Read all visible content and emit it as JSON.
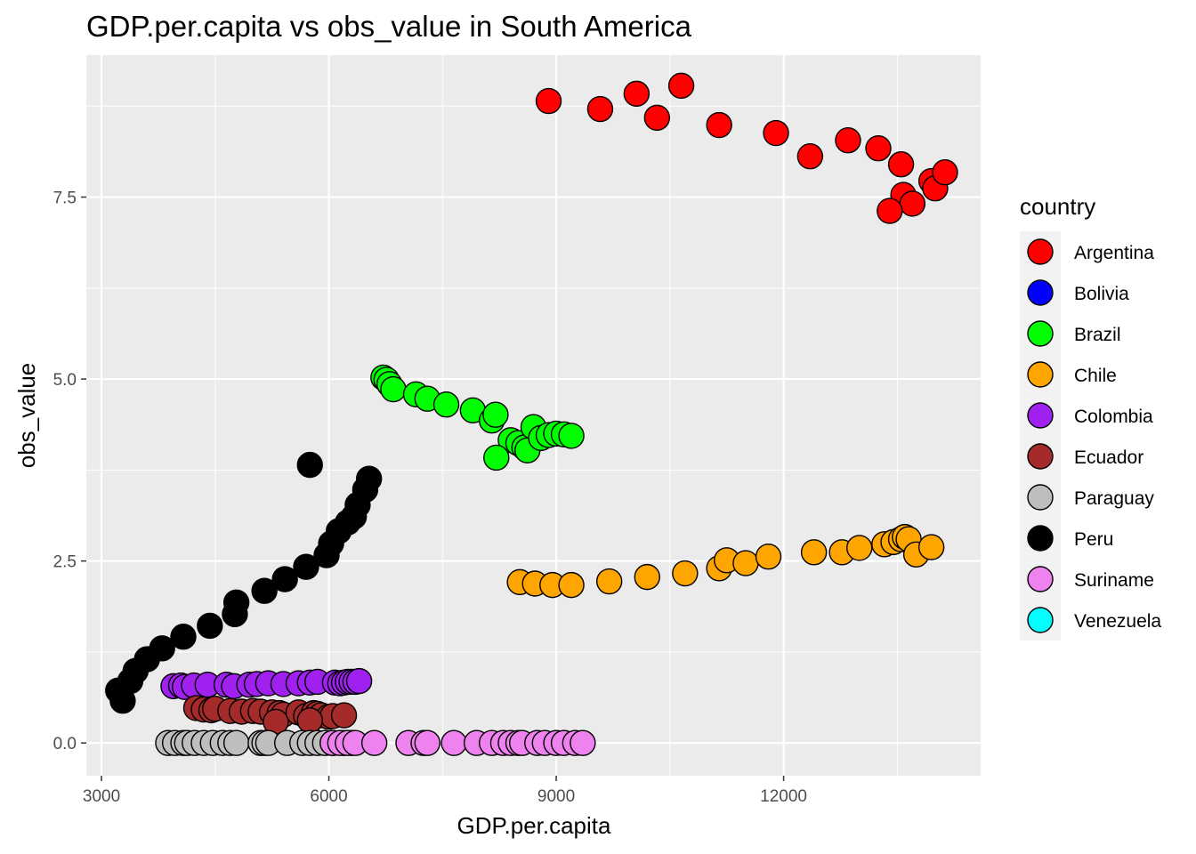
{
  "chart_data": {
    "type": "scatter",
    "title": "GDP.per.capita vs obs_value in South America",
    "xlabel": "GDP.per.capita",
    "ylabel": "obs_value",
    "xlim": [
      2800,
      14600
    ],
    "ylim": [
      -0.45,
      9.45
    ],
    "x_ticks": [
      3000,
      6000,
      9000,
      12000
    ],
    "x_tick_labels": [
      "3000",
      "6000",
      "9000",
      "12000"
    ],
    "y_ticks": [
      0,
      2.5,
      5,
      7.5
    ],
    "y_tick_labels": [
      "0.0",
      "2.5",
      "5.0",
      "7.5"
    ],
    "grid": true,
    "legend_title": "country",
    "legend_position": "right",
    "series": [
      {
        "name": "Argentina",
        "color": "#FF0000",
        "points": [
          [
            8900,
            8.82
          ],
          [
            9580,
            8.71
          ],
          [
            10060,
            8.92
          ],
          [
            10330,
            8.59
          ],
          [
            10650,
            9.03
          ],
          [
            11150,
            8.49
          ],
          [
            11900,
            8.38
          ],
          [
            12350,
            8.06
          ],
          [
            12850,
            8.28
          ],
          [
            13250,
            8.17
          ],
          [
            13550,
            7.95
          ],
          [
            13580,
            7.53
          ],
          [
            13700,
            7.41
          ],
          [
            13950,
            7.72
          ],
          [
            14000,
            7.62
          ],
          [
            14130,
            7.84
          ],
          [
            13400,
            7.31
          ]
        ]
      },
      {
        "name": "Bolivia",
        "color": "#0000FF",
        "points": []
      },
      {
        "name": "Brazil",
        "color": "#00FF00",
        "points": [
          [
            6720,
            5.02
          ],
          [
            6760,
            4.99
          ],
          [
            6800,
            4.93
          ],
          [
            6850,
            4.86
          ],
          [
            7150,
            4.79
          ],
          [
            7300,
            4.73
          ],
          [
            7550,
            4.65
          ],
          [
            7900,
            4.57
          ],
          [
            8150,
            4.43
          ],
          [
            8200,
            4.51
          ],
          [
            8400,
            4.16
          ],
          [
            8500,
            4.12
          ],
          [
            8580,
            4.06
          ],
          [
            8620,
            4.02
          ],
          [
            8700,
            4.34
          ],
          [
            8800,
            4.19
          ],
          [
            8900,
            4.23
          ],
          [
            9000,
            4.25
          ],
          [
            9100,
            4.24
          ],
          [
            9200,
            4.22
          ],
          [
            8210,
            3.92
          ]
        ]
      },
      {
        "name": "Chile",
        "color": "#FFA500",
        "points": [
          [
            8520,
            2.21
          ],
          [
            8720,
            2.19
          ],
          [
            8950,
            2.17
          ],
          [
            9200,
            2.17
          ],
          [
            9700,
            2.22
          ],
          [
            10200,
            2.28
          ],
          [
            10700,
            2.33
          ],
          [
            11150,
            2.4
          ],
          [
            11250,
            2.51
          ],
          [
            11500,
            2.47
          ],
          [
            11800,
            2.56
          ],
          [
            12400,
            2.62
          ],
          [
            12770,
            2.62
          ],
          [
            13000,
            2.68
          ],
          [
            13330,
            2.73
          ],
          [
            13450,
            2.76
          ],
          [
            13550,
            2.8
          ],
          [
            13600,
            2.83
          ],
          [
            13650,
            2.8
          ],
          [
            13750,
            2.59
          ],
          [
            13950,
            2.69
          ]
        ]
      },
      {
        "name": "Colombia",
        "color": "#A020F0",
        "points": [
          [
            3950,
            0.78
          ],
          [
            4050,
            0.79
          ],
          [
            4100,
            0.77
          ],
          [
            4220,
            0.79
          ],
          [
            4400,
            0.8
          ],
          [
            4650,
            0.8
          ],
          [
            4750,
            0.78
          ],
          [
            4950,
            0.8
          ],
          [
            5050,
            0.81
          ],
          [
            5200,
            0.82
          ],
          [
            5400,
            0.81
          ],
          [
            5600,
            0.82
          ],
          [
            5750,
            0.83
          ],
          [
            5850,
            0.84
          ],
          [
            6080,
            0.83
          ],
          [
            6150,
            0.82
          ],
          [
            6200,
            0.83
          ],
          [
            6250,
            0.84
          ],
          [
            6300,
            0.84
          ],
          [
            6350,
            0.84
          ],
          [
            6400,
            0.85
          ]
        ]
      },
      {
        "name": "Ecuador",
        "color": "#A52A2A",
        "points": [
          [
            4250,
            0.48
          ],
          [
            4350,
            0.46
          ],
          [
            4450,
            0.45
          ],
          [
            4500,
            0.47
          ],
          [
            4700,
            0.44
          ],
          [
            4850,
            0.43
          ],
          [
            5000,
            0.44
          ],
          [
            5100,
            0.43
          ],
          [
            5250,
            0.42
          ],
          [
            5350,
            0.41
          ],
          [
            5400,
            0.39
          ],
          [
            5300,
            0.29
          ],
          [
            5600,
            0.42
          ],
          [
            5700,
            0.37
          ],
          [
            5800,
            0.41
          ],
          [
            5850,
            0.4
          ],
          [
            5900,
            0.38
          ],
          [
            6000,
            0.36
          ],
          [
            6050,
            0.37
          ],
          [
            6200,
            0.38
          ],
          [
            5750,
            0.31
          ]
        ]
      },
      {
        "name": "Paraguay",
        "color": "#BEBEBE",
        "points": [
          [
            3880,
            0.0
          ],
          [
            3970,
            0.0
          ],
          [
            4080,
            0.0
          ],
          [
            4130,
            0.0
          ],
          [
            4230,
            0.0
          ],
          [
            4350,
            0.0
          ],
          [
            4470,
            0.0
          ],
          [
            4600,
            0.0
          ],
          [
            4700,
            0.0
          ],
          [
            4780,
            0.0
          ],
          [
            5100,
            0.0
          ],
          [
            5150,
            0.0
          ],
          [
            5200,
            0.0
          ],
          [
            5450,
            0.0
          ],
          [
            5650,
            0.0
          ],
          [
            5750,
            0.0
          ],
          [
            5850,
            0.0
          ],
          [
            5950,
            0.0
          ],
          [
            6050,
            0.0
          ],
          [
            6200,
            0.0
          ],
          [
            6300,
            0.0
          ]
        ]
      },
      {
        "name": "Peru",
        "color": "#000000",
        "points": [
          [
            3220,
            0.72
          ],
          [
            3280,
            0.58
          ],
          [
            3380,
            0.85
          ],
          [
            3450,
            0.99
          ],
          [
            3600,
            1.15
          ],
          [
            3800,
            1.3
          ],
          [
            4080,
            1.46
          ],
          [
            4430,
            1.61
          ],
          [
            4760,
            1.77
          ],
          [
            4780,
            1.93
          ],
          [
            5150,
            2.09
          ],
          [
            5420,
            2.25
          ],
          [
            5700,
            2.42
          ],
          [
            5970,
            2.58
          ],
          [
            6030,
            2.74
          ],
          [
            6130,
            2.91
          ],
          [
            6250,
            3.03
          ],
          [
            6330,
            3.11
          ],
          [
            6380,
            3.27
          ],
          [
            6480,
            3.48
          ],
          [
            6530,
            3.63
          ],
          [
            5750,
            3.82
          ]
        ]
      },
      {
        "name": "Suriname",
        "color": "#EE82EE",
        "points": [
          [
            6050,
            0.0
          ],
          [
            6150,
            0.0
          ],
          [
            6250,
            0.0
          ],
          [
            6350,
            0.0
          ],
          [
            6600,
            0.0
          ],
          [
            7050,
            0.0
          ],
          [
            7250,
            0.0
          ],
          [
            7300,
            0.0
          ],
          [
            7650,
            0.0
          ],
          [
            7950,
            0.0
          ],
          [
            8150,
            0.0
          ],
          [
            8300,
            0.0
          ],
          [
            8400,
            0.0
          ],
          [
            8500,
            0.0
          ],
          [
            8550,
            0.0
          ],
          [
            8750,
            0.0
          ],
          [
            8850,
            0.0
          ],
          [
            9000,
            0.0
          ],
          [
            9100,
            0.0
          ],
          [
            9250,
            0.0
          ],
          [
            9350,
            0.0
          ]
        ]
      },
      {
        "name": "Venezuela",
        "color": "#00FFFF",
        "points": []
      }
    ]
  }
}
